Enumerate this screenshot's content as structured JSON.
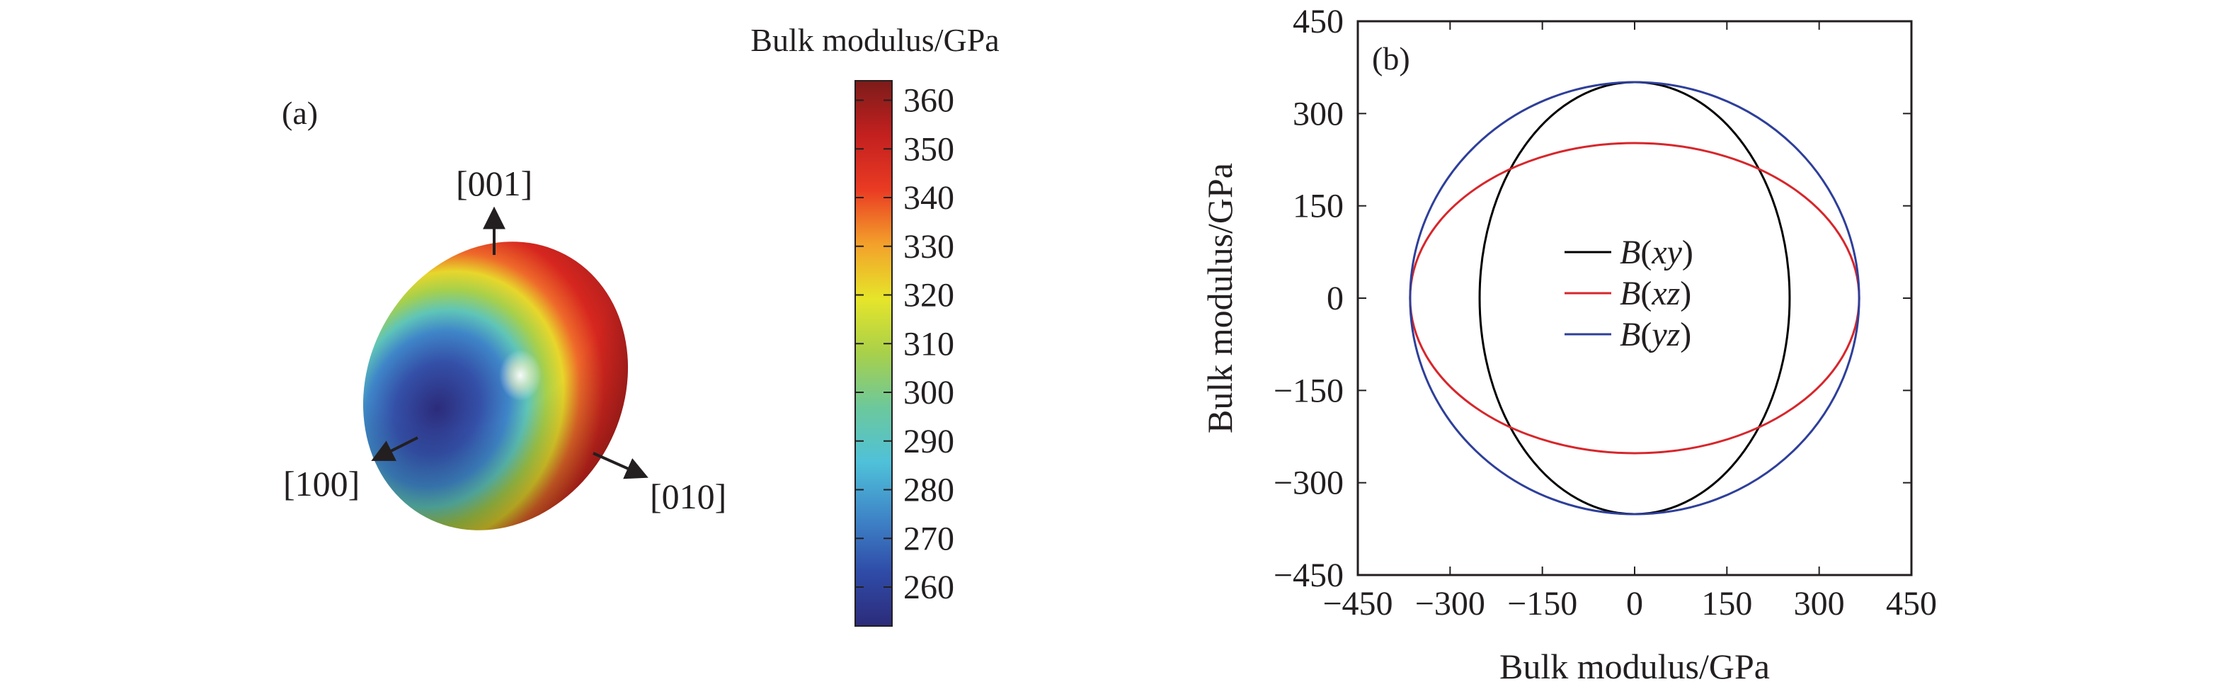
{
  "panel_a": {
    "label": "(a)",
    "directions": {
      "z": "[001]",
      "x": "[100]",
      "y": "[010]"
    },
    "colorbar": {
      "title": "Bulk modulus/GPa",
      "min": 252,
      "max": 364,
      "ticks": [
        "260",
        "270",
        "280",
        "290",
        "300",
        "310",
        "320",
        "330",
        "340",
        "350",
        "360"
      ],
      "tick_values": [
        260,
        270,
        280,
        290,
        300,
        310,
        320,
        330,
        340,
        350,
        360
      ],
      "colormap": [
        "#2c2b7a",
        "#2f4ca8",
        "#3f86c8",
        "#4fc1d9",
        "#6cc89c",
        "#a8d04a",
        "#e6e52a",
        "#f3a12b",
        "#ea3b23",
        "#c3201f",
        "#7c1c1a"
      ]
    }
  },
  "chart_data": {
    "type": "line",
    "subtype": "polar-projection",
    "panel_label": "(b)",
    "xlabel": "Bulk modulus/GPa",
    "ylabel": "Bulk modulus/GPa",
    "xlim": [
      -450,
      450
    ],
    "ylim": [
      -450,
      450
    ],
    "xticks": [
      -450,
      -300,
      -150,
      0,
      150,
      300,
      450
    ],
    "yticks": [
      -450,
      -300,
      -150,
      0,
      150,
      300,
      450
    ],
    "xtick_labels": [
      "−450",
      "−300",
      "−150",
      "0",
      "150",
      "300",
      "450"
    ],
    "ytick_labels": [
      "−450",
      "−300",
      "−150",
      "0",
      "150",
      "300",
      "450"
    ],
    "grid": false,
    "legend_position": "center",
    "series": [
      {
        "name": "B(xy)",
        "name_parts": [
          {
            "t": "B",
            "i": true
          },
          {
            "t": "(",
            "i": false
          },
          {
            "t": "xy",
            "i": true
          },
          {
            "t": ")",
            "i": false
          }
        ],
        "color": "#000000",
        "rx": 252,
        "ry": 351
      },
      {
        "name": "B(xz)",
        "name_parts": [
          {
            "t": "B",
            "i": true
          },
          {
            "t": "(",
            "i": false
          },
          {
            "t": "xz",
            "i": true
          },
          {
            "t": ")",
            "i": false
          }
        ],
        "color": "#d7262b",
        "rx": 365,
        "ry": 252
      },
      {
        "name": "B(yz)",
        "name_parts": [
          {
            "t": "B",
            "i": true
          },
          {
            "t": "(",
            "i": false
          },
          {
            "t": "yz",
            "i": true
          },
          {
            "t": ")",
            "i": false
          }
        ],
        "color": "#2e3f9a",
        "rx": 365,
        "ry": 351
      }
    ]
  }
}
